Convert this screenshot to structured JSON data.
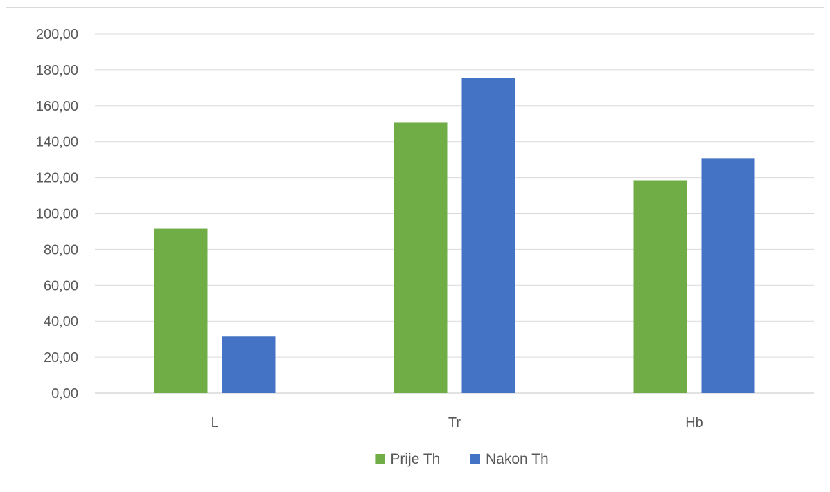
{
  "chart_data": {
    "type": "bar",
    "title": "",
    "xlabel": "",
    "ylabel": "",
    "categories": [
      "L",
      "Tr",
      "Hb"
    ],
    "series": [
      {
        "name": "Prije Th",
        "values": [
          91.5,
          150.5,
          118.5
        ]
      },
      {
        "name": "Nakon Th",
        "values": [
          31.5,
          175.5,
          130.5
        ]
      }
    ],
    "ylim": [
      0,
      200
    ],
    "ytick_step": 20,
    "yticks": [
      "0,00",
      "20,00",
      "40,00",
      "60,00",
      "80,00",
      "100,00",
      "120,00",
      "140,00",
      "160,00",
      "180,00",
      "200,00"
    ],
    "grid": true,
    "legend": "bottom-center",
    "colors": {
      "Prije Th": "#70ad47",
      "Nakon Th": "#4472c4",
      "grid": "#d9d9d9",
      "text": "#595959"
    }
  }
}
